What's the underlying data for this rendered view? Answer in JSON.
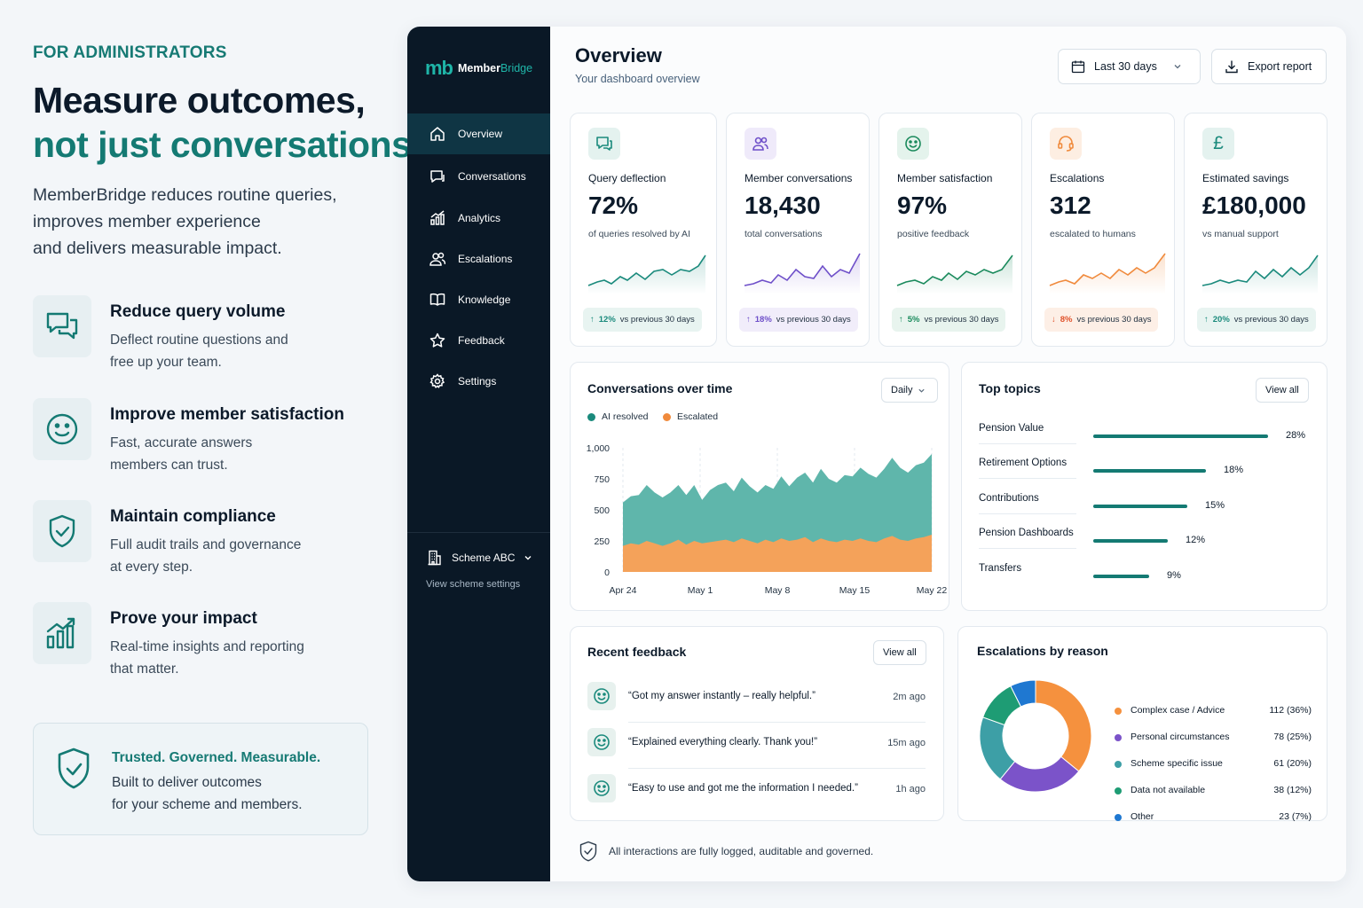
{
  "marketing": {
    "eyebrow": "FOR ADMINISTRATORS",
    "headline_line1": "Measure outcomes,",
    "headline_line2": "not just conversations.",
    "intro": "MemberBridge reduces routine queries,\nimproves member experience\nand delivers measurable impact.",
    "features": [
      {
        "title": "Reduce query volume",
        "desc": "Deflect routine questions and\nfree up your team.",
        "icon": "chat-bubbles-icon"
      },
      {
        "title": "Improve member satisfaction",
        "desc": "Fast, accurate answers\nmembers can trust.",
        "icon": "smiley-icon"
      },
      {
        "title": "Maintain compliance",
        "desc": "Full audit trails and governance\nat every step.",
        "icon": "shield-check-icon"
      },
      {
        "title": "Prove your impact",
        "desc": "Real-time insights and reporting\nthat matter.",
        "icon": "bar-chart-trend-icon"
      }
    ],
    "trust_title": "Trusted. Governed. Measurable.",
    "trust_desc": "Built to deliver outcomes\nfor your scheme and members."
  },
  "app": {
    "logo_mark": "mb",
    "logo_word_a": "Member",
    "logo_word_b": "Bridge",
    "nav": [
      {
        "label": "Overview",
        "icon": "home-icon",
        "active": true
      },
      {
        "label": "Conversations",
        "icon": "chat-icon"
      },
      {
        "label": "Analytics",
        "icon": "analytics-icon"
      },
      {
        "label": "Escalations",
        "icon": "users-icon"
      },
      {
        "label": "Knowledge",
        "icon": "book-icon"
      },
      {
        "label": "Feedback",
        "icon": "star-icon"
      },
      {
        "label": "Settings",
        "icon": "gear-icon"
      }
    ],
    "scheme_name": "Scheme ABC",
    "scheme_link": "View scheme settings",
    "page_title": "Overview",
    "page_subtitle": "Your dashboard overview",
    "date_range": "Last 30 days",
    "export_label": "Export report",
    "kpis": [
      {
        "label": "Query deflection",
        "value": "72%",
        "sub": "of queries resolved by AI",
        "delta": "12%",
        "delta_dir": "up",
        "delta_text": "vs previous 30 days",
        "color": "#1a8a7c",
        "icon": "chat-bubble-icon"
      },
      {
        "label": "Member conversations",
        "value": "18,430",
        "sub": "total conversations",
        "delta": "18%",
        "delta_dir": "up",
        "delta_text": "vs previous 30 days",
        "color": "#6e4fc9",
        "icon": "people-icon"
      },
      {
        "label": "Member satisfaction",
        "value": "97%",
        "sub": "positive feedback",
        "delta": "5%",
        "delta_dir": "up",
        "delta_text": "vs previous 30 days",
        "color": "#1a8a5c",
        "icon": "smiley-icon"
      },
      {
        "label": "Escalations",
        "value": "312",
        "sub": "escalated to humans",
        "delta": "8%",
        "delta_dir": "down",
        "delta_text": "vs previous 30 days",
        "color": "#f08a3c",
        "icon": "headset-icon"
      },
      {
        "label": "Estimated savings",
        "value": "£180,000",
        "sub": "vs manual support",
        "delta": "20%",
        "delta_dir": "up",
        "delta_text": "vs previous 30 days",
        "color": "#1a8a7c",
        "icon": "pound-icon"
      }
    ],
    "conv_title": "Conversations over time",
    "conv_period": "Daily",
    "topics_title": "Top topics",
    "topics_view_all": "View all",
    "topics": [
      {
        "label": "Pension Value",
        "pct": 28,
        "pct_text": "28%"
      },
      {
        "label": "Retirement Options",
        "pct": 18,
        "pct_text": "18%"
      },
      {
        "label": "Contributions",
        "pct": 15,
        "pct_text": "15%"
      },
      {
        "label": "Pension Dashboards",
        "pct": 12,
        "pct_text": "12%"
      },
      {
        "label": "Transfers",
        "pct": 9,
        "pct_text": "9%"
      }
    ],
    "feedback_title": "Recent feedback",
    "feedback_view_all": "View all",
    "feedback": [
      {
        "text": "“Got my answer instantly – really helpful.”",
        "time": "2m ago"
      },
      {
        "text": "“Explained everything clearly. Thank you!”",
        "time": "15m ago"
      },
      {
        "text": "“Easy to use and got me the information I needed.”",
        "time": "1h ago"
      }
    ],
    "escalations_title": "Escalations by reason",
    "escalations": [
      {
        "name": "Complex case / Advice",
        "value": "112  (36%)",
        "count": 112,
        "color": "#f5913e"
      },
      {
        "name": "Personal circumstances",
        "value": "78  (25%)",
        "count": 78,
        "color": "#7b53c9"
      },
      {
        "name": "Scheme specific issue",
        "value": "61  (20%)",
        "count": 61,
        "color": "#3d9fa6"
      },
      {
        "name": "Data not available",
        "value": "38  (12%)",
        "count": 38,
        "color": "#1e9c74"
      },
      {
        "name": "Other",
        "value": "23  (7%)",
        "count": 23,
        "color": "#1f78d1"
      }
    ],
    "footer_note": "All interactions are fully logged, auditable and governed."
  },
  "chart_data": {
    "type": "area",
    "title": "Conversations over time",
    "x_ticks": [
      "Apr 24",
      "May 1",
      "May 8",
      "May 15",
      "May 22"
    ],
    "y_ticks": [
      "1,000",
      "750",
      "500",
      "250",
      "0"
    ],
    "ylim": [
      0,
      1000
    ],
    "legend_position": "top-left",
    "grid": "vertical dashed",
    "series": [
      {
        "name": "AI resolved",
        "color": "#5fb6ab",
        "values": [
          560,
          610,
          620,
          700,
          640,
          600,
          640,
          700,
          620,
          700,
          580,
          660,
          700,
          720,
          650,
          760,
          690,
          640,
          700,
          670,
          770,
          690,
          760,
          800,
          720,
          830,
          750,
          720,
          780,
          770,
          840,
          790,
          760,
          830,
          920,
          840,
          800,
          860,
          880,
          950
        ]
      },
      {
        "name": "Escalated",
        "color": "#f4a25a",
        "values": [
          210,
          230,
          220,
          250,
          230,
          210,
          230,
          260,
          220,
          250,
          230,
          240,
          250,
          260,
          240,
          270,
          250,
          230,
          260,
          240,
          270,
          250,
          260,
          280,
          240,
          270,
          250,
          240,
          260,
          250,
          270,
          250,
          240,
          270,
          290,
          260,
          250,
          270,
          280,
          300
        ]
      }
    ]
  }
}
